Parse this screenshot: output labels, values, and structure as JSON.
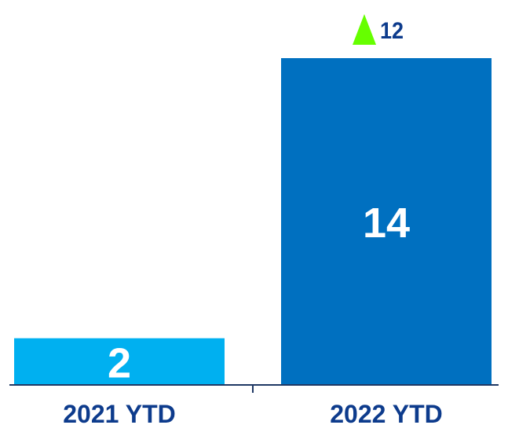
{
  "chart_data": {
    "type": "bar",
    "categories": [
      "2021 YTD",
      "2022 YTD"
    ],
    "values": [
      2,
      14
    ],
    "data_labels": [
      "2",
      "14"
    ],
    "bar_colors": [
      "#00b0f0",
      "#0070c0"
    ],
    "ylim": [
      0,
      14
    ],
    "grid": false,
    "change": {
      "label": "12",
      "direction": "up",
      "icon": "up-triangle-icon",
      "color": "#66ff00"
    },
    "axis_color": "#1f3864",
    "label_color": "#0d3b8c"
  }
}
